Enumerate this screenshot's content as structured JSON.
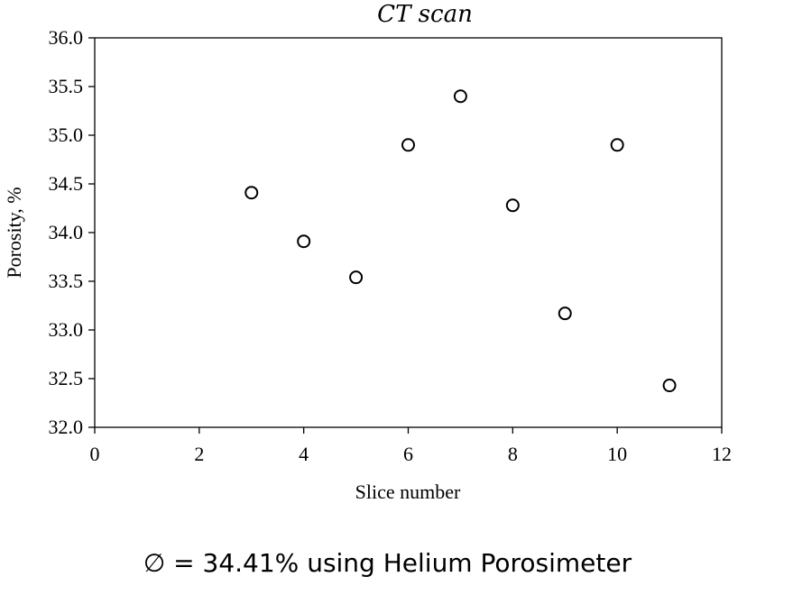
{
  "chart_data": {
    "type": "scatter",
    "title": "CT scan",
    "xlabel": "Slice number",
    "ylabel": "Porosity, %",
    "xlim": [
      0,
      12
    ],
    "ylim": [
      32.0,
      36.0
    ],
    "x_ticks": [
      "0",
      "2",
      "4",
      "6",
      "8",
      "10",
      "12"
    ],
    "y_ticks": [
      "32.0",
      "32.5",
      "33.0",
      "33.5",
      "34.0",
      "34.5",
      "35.0",
      "35.5",
      "36.0"
    ],
    "grid": false,
    "marker": "open-circle",
    "series": [
      {
        "points": [
          {
            "x": 3,
            "y": 34.41
          },
          {
            "x": 4,
            "y": 33.91
          },
          {
            "x": 5,
            "y": 33.54
          },
          {
            "x": 6,
            "y": 34.9
          },
          {
            "x": 7,
            "y": 35.4
          },
          {
            "x": 8,
            "y": 34.28
          },
          {
            "x": 9,
            "y": 33.17
          },
          {
            "x": 10,
            "y": 34.9
          },
          {
            "x": 11,
            "y": 32.43
          }
        ]
      }
    ]
  },
  "footer": {
    "text": "∅ = 34.41% using Helium Porosimeter"
  }
}
